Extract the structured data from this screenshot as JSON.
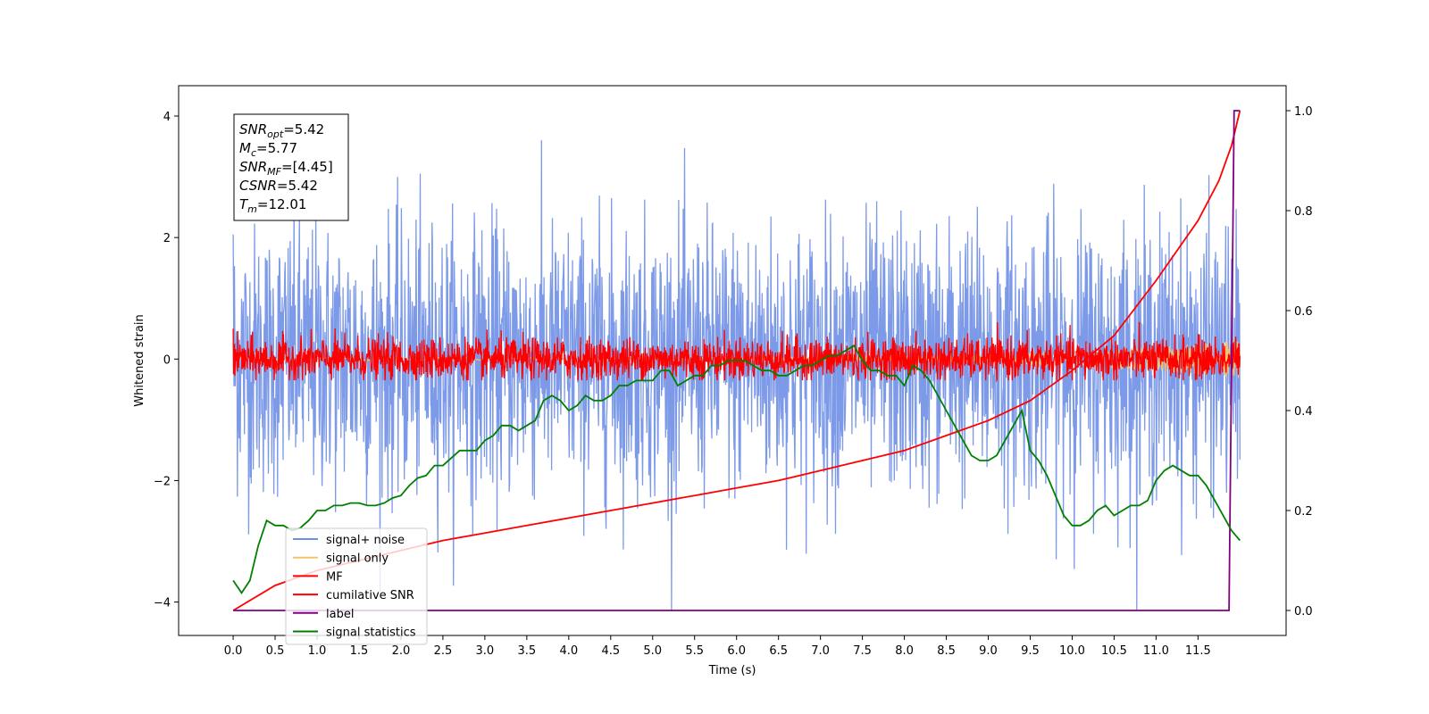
{
  "chart_data": {
    "type": "line",
    "title": "",
    "xlabel": "Time (s)",
    "ylabel": "Whitened strain",
    "xlim": [
      -0.65,
      12.55
    ],
    "ylim": [
      -4.55,
      4.5
    ],
    "y2lim": [
      -0.05,
      1.05
    ],
    "xticks": [
      "0.0",
      "0.5",
      "1.0",
      "1.5",
      "2.0",
      "2.5",
      "3.0",
      "3.5",
      "4.0",
      "4.5",
      "5.0",
      "5.5",
      "6.0",
      "6.5",
      "7.0",
      "7.5",
      "8.0",
      "8.5",
      "9.0",
      "9.5",
      "10.0",
      "10.5",
      "11.0",
      "11.5"
    ],
    "yticks": [
      "4",
      "2",
      "0",
      "−2",
      "−4"
    ],
    "y2ticks": [
      "1.0",
      "0.8",
      "0.6",
      "0.4",
      "0.2",
      "0.0"
    ],
    "grid": false,
    "legend_position": "lower-left",
    "annotation": {
      "lines": [
        {
          "name": "SNR",
          "sub": "opt",
          "value": "=5.42"
        },
        {
          "name": "M",
          "sub": "c",
          "value": "=5.77"
        },
        {
          "name": "SNR",
          "sub": "MF",
          "value": "=[4.45]"
        },
        {
          "name": "CSNR",
          "sub": "",
          "value": "=5.42"
        },
        {
          "name": "T",
          "sub": "m",
          "value": "=12.01"
        }
      ]
    },
    "series": [
      {
        "name": "signal+ noise",
        "color": "#6f8fe6",
        "axis": "left",
        "kind": "noise",
        "amplitude_range": [
          -4.15,
          4.1
        ],
        "x_range": [
          0.0,
          12.0
        ]
      },
      {
        "name": "signal only",
        "color": "#f5c36b",
        "axis": "left",
        "kind": "signal",
        "amplitude_range": [
          -0.3,
          0.3
        ],
        "x_range": [
          0.0,
          12.0
        ]
      },
      {
        "name": "MF",
        "color": "#ff0000",
        "axis": "left",
        "kind": "noise",
        "amplitude_range": [
          -0.35,
          1.0
        ],
        "x_range": [
          0.0,
          12.0
        ]
      },
      {
        "name": "cumilative SNR",
        "color": "#ff0000",
        "axis": "right",
        "x": [
          0.0,
          0.5,
          1.0,
          1.5,
          2.0,
          2.5,
          3.0,
          3.5,
          4.0,
          4.5,
          5.0,
          5.5,
          6.0,
          6.5,
          7.0,
          7.5,
          8.0,
          8.5,
          9.0,
          9.5,
          10.0,
          10.5,
          11.0,
          11.5,
          11.75,
          11.9,
          12.0
        ],
        "y": [
          0.0,
          0.05,
          0.08,
          0.1,
          0.12,
          0.14,
          0.155,
          0.17,
          0.185,
          0.2,
          0.215,
          0.23,
          0.245,
          0.26,
          0.28,
          0.3,
          0.32,
          0.35,
          0.38,
          0.42,
          0.48,
          0.55,
          0.66,
          0.78,
          0.86,
          0.93,
          1.0
        ]
      },
      {
        "name": "label",
        "color": "#800080",
        "axis": "right",
        "x": [
          0.0,
          11.87,
          11.93,
          12.0
        ],
        "y": [
          0.0,
          0.0,
          1.0,
          1.0
        ]
      },
      {
        "name": "signal statistics",
        "color": "#008000",
        "axis": "right",
        "x": [
          0.0,
          0.1,
          0.2,
          0.3,
          0.4,
          0.5,
          0.6,
          0.7,
          0.8,
          0.9,
          1.0,
          1.1,
          1.2,
          1.3,
          1.4,
          1.5,
          1.6,
          1.7,
          1.8,
          1.9,
          2.0,
          2.1,
          2.2,
          2.3,
          2.4,
          2.5,
          2.6,
          2.7,
          2.8,
          2.9,
          3.0,
          3.1,
          3.2,
          3.3,
          3.4,
          3.5,
          3.6,
          3.7,
          3.8,
          3.9,
          4.0,
          4.1,
          4.2,
          4.3,
          4.4,
          4.5,
          4.6,
          4.7,
          4.8,
          4.9,
          5.0,
          5.1,
          5.2,
          5.3,
          5.4,
          5.5,
          5.6,
          5.7,
          5.8,
          5.9,
          6.0,
          6.1,
          6.2,
          6.3,
          6.4,
          6.5,
          6.6,
          6.7,
          6.8,
          6.9,
          7.0,
          7.1,
          7.2,
          7.3,
          7.4,
          7.5,
          7.6,
          7.7,
          7.8,
          7.9,
          8.0,
          8.1,
          8.2,
          8.3,
          8.4,
          8.5,
          8.6,
          8.7,
          8.8,
          8.9,
          9.0,
          9.1,
          9.2,
          9.3,
          9.4,
          9.5,
          9.6,
          9.7,
          9.8,
          9.9,
          10.0,
          10.1,
          10.2,
          10.3,
          10.4,
          10.5,
          10.6,
          10.7,
          10.8,
          10.9,
          11.0,
          11.1,
          11.2,
          11.3,
          11.4,
          11.5,
          11.6,
          11.7,
          11.8,
          11.9,
          12.0
        ],
        "y": [
          0.06,
          0.035,
          0.06,
          0.13,
          0.18,
          0.17,
          0.17,
          0.16,
          0.165,
          0.18,
          0.2,
          0.2,
          0.21,
          0.21,
          0.215,
          0.215,
          0.21,
          0.21,
          0.215,
          0.225,
          0.23,
          0.25,
          0.265,
          0.27,
          0.29,
          0.29,
          0.305,
          0.32,
          0.32,
          0.32,
          0.34,
          0.35,
          0.37,
          0.37,
          0.36,
          0.37,
          0.38,
          0.42,
          0.43,
          0.42,
          0.4,
          0.41,
          0.43,
          0.42,
          0.42,
          0.43,
          0.45,
          0.45,
          0.46,
          0.46,
          0.46,
          0.48,
          0.48,
          0.45,
          0.46,
          0.47,
          0.47,
          0.49,
          0.49,
          0.5,
          0.5,
          0.5,
          0.49,
          0.48,
          0.48,
          0.47,
          0.47,
          0.48,
          0.49,
          0.49,
          0.5,
          0.51,
          0.51,
          0.52,
          0.53,
          0.5,
          0.48,
          0.48,
          0.47,
          0.47,
          0.45,
          0.49,
          0.48,
          0.46,
          0.43,
          0.4,
          0.37,
          0.34,
          0.31,
          0.3,
          0.3,
          0.31,
          0.34,
          0.37,
          0.4,
          0.32,
          0.3,
          0.27,
          0.23,
          0.19,
          0.17,
          0.17,
          0.18,
          0.2,
          0.21,
          0.19,
          0.2,
          0.21,
          0.21,
          0.22,
          0.26,
          0.28,
          0.29,
          0.28,
          0.27,
          0.27,
          0.25,
          0.22,
          0.19,
          0.16,
          0.14
        ]
      }
    ]
  }
}
